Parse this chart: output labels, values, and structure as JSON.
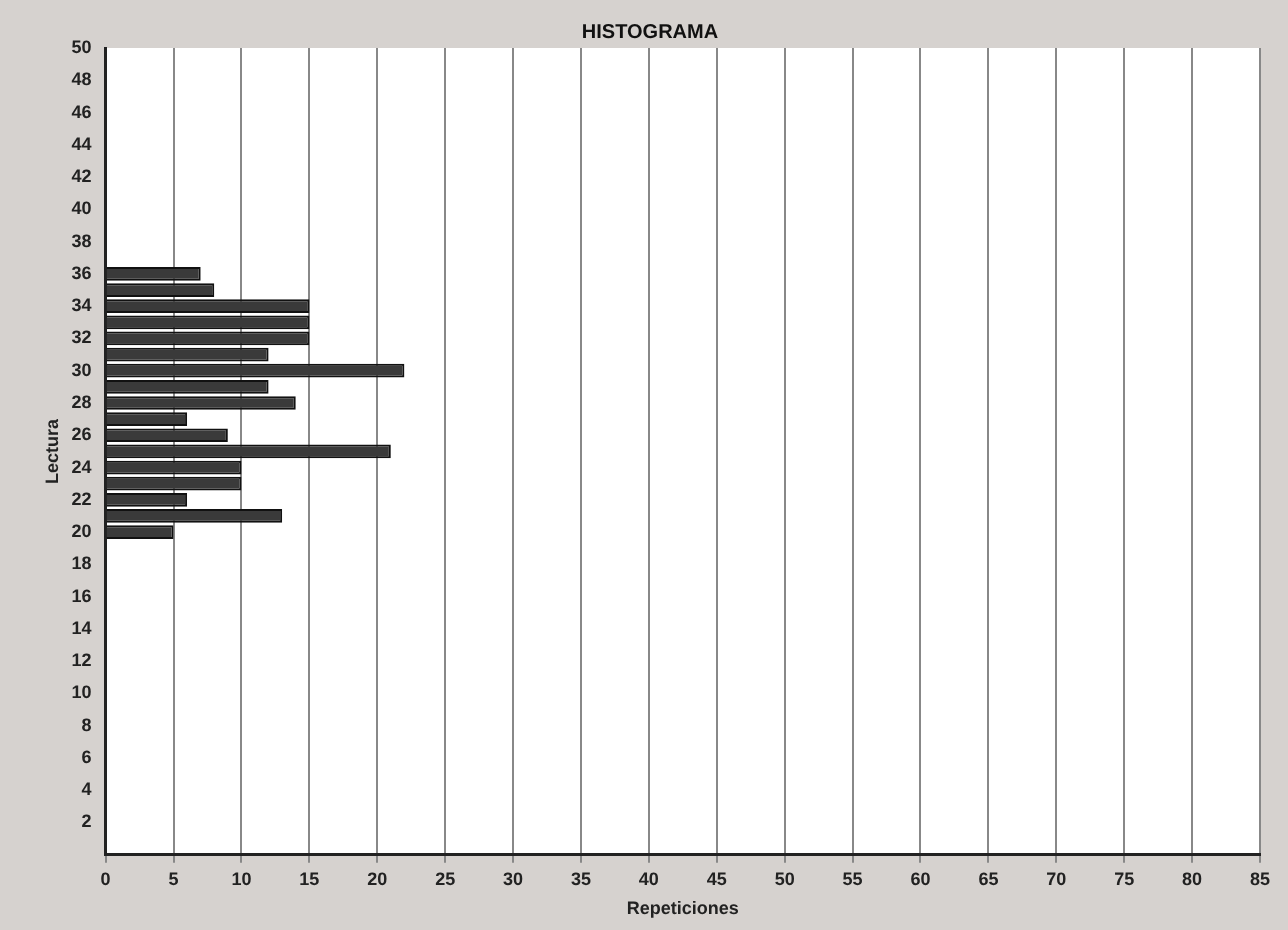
{
  "chart_data": {
    "type": "bar",
    "orientation": "horizontal",
    "title": "HISTOGRAMA",
    "xlabel": "Repeticiones",
    "ylabel": "Lectura",
    "x": [
      20,
      21,
      22,
      23,
      24,
      25,
      26,
      27,
      28,
      29,
      30,
      31,
      32,
      33,
      34,
      35,
      36
    ],
    "values": [
      5,
      13,
      6,
      10,
      10,
      21,
      9,
      6,
      14,
      12,
      22,
      12,
      15,
      15,
      15,
      8,
      7
    ],
    "color": "#3a3a3a",
    "xlim": [
      0,
      85
    ],
    "xticks": [
      0,
      5,
      10,
      15,
      20,
      25,
      30,
      35,
      40,
      45,
      50,
      55,
      60,
      65,
      70,
      75,
      80,
      85
    ],
    "ylim": [
      0,
      50
    ],
    "yticks": [
      2,
      4,
      6,
      8,
      10,
      12,
      14,
      16,
      18,
      20,
      22,
      24,
      26,
      28,
      30,
      32,
      34,
      36,
      38,
      40,
      42,
      44,
      46,
      48,
      50
    ],
    "grid": "x",
    "legend": false
  }
}
